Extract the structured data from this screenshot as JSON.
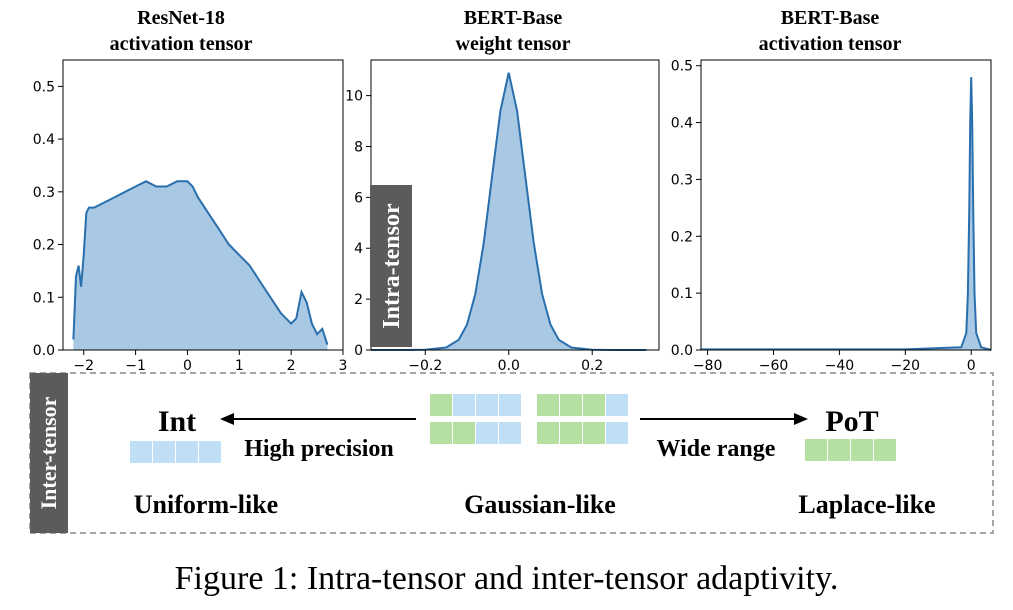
{
  "colors": {
    "hist_fill": "#a9c8e3",
    "kde_line": "#2a6fad",
    "int_block": "#bfdff7",
    "pot_block": "#b6e0a2",
    "side_label_bg": "#5b5b5b",
    "side_label_text": "#ffffff"
  },
  "chart_data": [
    {
      "type": "area",
      "title_line1": "ResNet-18",
      "title_line2": "activation tensor",
      "xlim": [
        -2.4,
        3.0
      ],
      "ylim": [
        0.0,
        0.55
      ],
      "xticks": [
        "-2",
        "-1",
        "0",
        "1",
        "2",
        "3"
      ],
      "xtick_values": [
        -2,
        -1,
        0,
        1,
        2,
        3
      ],
      "yticks": [
        "0.0",
        "0.1",
        "0.2",
        "0.3",
        "0.4",
        "0.5"
      ],
      "ytick_values": [
        0.0,
        0.1,
        0.2,
        0.3,
        0.4,
        0.5
      ],
      "x": [
        -2.2,
        -2.15,
        -2.1,
        -2.05,
        -2.0,
        -1.95,
        -1.9,
        -1.8,
        -1.6,
        -1.4,
        -1.2,
        -1.0,
        -0.8,
        -0.6,
        -0.4,
        -0.2,
        0.0,
        0.1,
        0.2,
        0.4,
        0.6,
        0.8,
        1.0,
        1.2,
        1.4,
        1.6,
        1.8,
        2.0,
        2.1,
        2.2,
        2.3,
        2.4,
        2.5,
        2.6,
        2.7
      ],
      "y": [
        0.02,
        0.14,
        0.16,
        0.12,
        0.18,
        0.26,
        0.27,
        0.27,
        0.28,
        0.29,
        0.3,
        0.31,
        0.32,
        0.31,
        0.31,
        0.32,
        0.32,
        0.31,
        0.29,
        0.26,
        0.23,
        0.2,
        0.18,
        0.16,
        0.13,
        0.1,
        0.07,
        0.05,
        0.06,
        0.11,
        0.09,
        0.05,
        0.03,
        0.04,
        0.01
      ]
    },
    {
      "type": "area",
      "title_line1": "BERT-Base",
      "title_line2": "weight tensor",
      "xlim": [
        -0.33,
        0.36
      ],
      "ylim": [
        0.0,
        11.4
      ],
      "xticks": [
        "-0.2",
        "0.0",
        "0.2"
      ],
      "xtick_values": [
        -0.2,
        0.0,
        0.2
      ],
      "yticks": [
        "0",
        "2",
        "4",
        "6",
        "8",
        "10"
      ],
      "ytick_values": [
        0,
        2,
        4,
        6,
        8,
        10
      ],
      "x": [
        -0.33,
        -0.25,
        -0.2,
        -0.15,
        -0.12,
        -0.1,
        -0.08,
        -0.06,
        -0.04,
        -0.02,
        0.0,
        0.02,
        0.04,
        0.06,
        0.08,
        0.1,
        0.12,
        0.15,
        0.2,
        0.25,
        0.33
      ],
      "y": [
        0.0,
        0.0,
        0.01,
        0.1,
        0.4,
        1.0,
        2.2,
        4.2,
        6.8,
        9.4,
        10.9,
        9.4,
        6.8,
        4.2,
        2.2,
        1.0,
        0.4,
        0.1,
        0.01,
        0.0,
        0.0
      ]
    },
    {
      "type": "area",
      "title_line1": "BERT-Base",
      "title_line2": "activation tensor",
      "xlim": [
        -82,
        6
      ],
      "ylim": [
        0.0,
        0.51
      ],
      "xticks": [
        "-80",
        "-60",
        "-40",
        "-20",
        "0"
      ],
      "xtick_values": [
        -80,
        -60,
        -40,
        -20,
        0
      ],
      "yticks": [
        "0.0",
        "0.1",
        "0.2",
        "0.3",
        "0.4",
        "0.5"
      ],
      "ytick_values": [
        0.0,
        0.1,
        0.2,
        0.3,
        0.4,
        0.5
      ],
      "x": [
        -82,
        -60,
        -40,
        -20,
        -3,
        -1.5,
        -1.0,
        -0.6,
        -0.3,
        0.0,
        0.3,
        0.6,
        1.0,
        1.5,
        3,
        6
      ],
      "y": [
        0.001,
        0.001,
        0.001,
        0.001,
        0.005,
        0.03,
        0.1,
        0.25,
        0.4,
        0.48,
        0.4,
        0.25,
        0.1,
        0.03,
        0.005,
        0.0
      ]
    }
  ],
  "labels": {
    "intra_tensor": "Intra-tensor",
    "inter_tensor": "Inter-tensor",
    "int": "Int",
    "pot": "PoT",
    "high_precision": "High precision",
    "wide_range": "Wide range",
    "uniform_like": "Uniform-like",
    "gaussian_like": "Gaussian-like",
    "laplace_like": "Laplace-like"
  },
  "caption": "Figure 1: Intra-tensor and inter-tensor adaptivity."
}
